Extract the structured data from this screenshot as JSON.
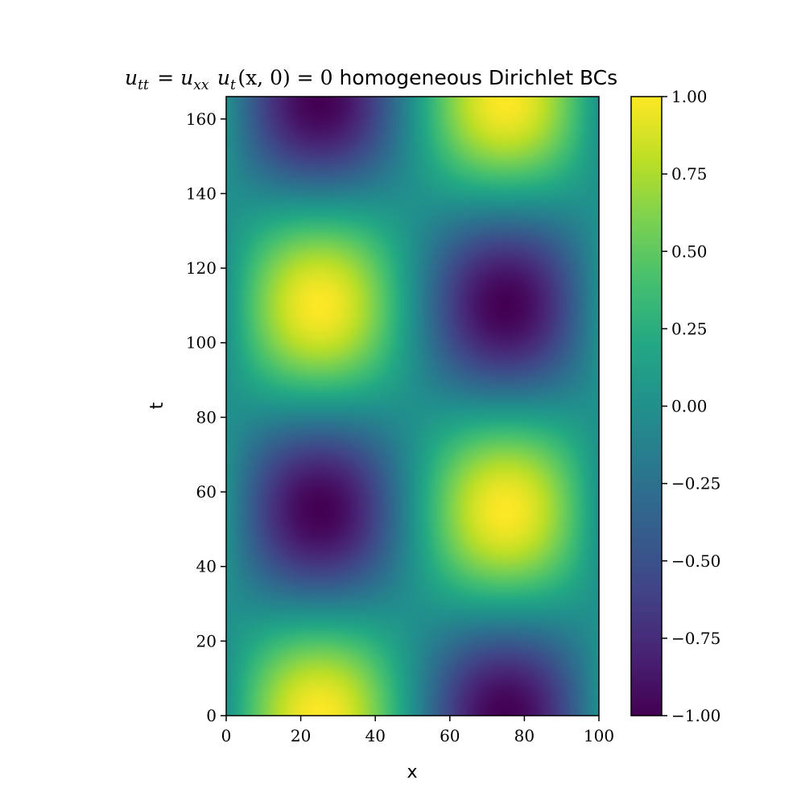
{
  "chart_data": {
    "type": "heatmap",
    "title": {
      "math_parts": [
        {
          "base": "u",
          "sub": "tt"
        },
        {
          "text": " = "
        },
        {
          "base": "u",
          "sub": "xx"
        },
        {
          "text": " "
        },
        {
          "base": "u",
          "sub": "t"
        },
        {
          "text": "(x, 0) = 0"
        }
      ],
      "text": "homogeneous Dirichlet BCs"
    },
    "xlabel": "x",
    "ylabel": "t",
    "xlim": [
      0,
      100
    ],
    "ylim": [
      0,
      166
    ],
    "x_ticks": [
      0,
      20,
      40,
      60,
      80,
      100
    ],
    "y_ticks": [
      0,
      20,
      40,
      60,
      80,
      100,
      120,
      140,
      160
    ],
    "colorbar": {
      "min": -1.0,
      "max": 1.0,
      "ticks": [
        1.0,
        0.75,
        0.5,
        0.25,
        0.0,
        -0.25,
        -0.5,
        -0.75,
        -1.0
      ],
      "tick_labels": [
        "1.00",
        "0.75",
        "0.50",
        "0.25",
        "0.00",
        "−0.25",
        "−0.50",
        "−0.75",
        "−1.00"
      ],
      "colormap": "viridis"
    },
    "field": {
      "formula": "u(x,t) = sin(2πx/100) · cos(2πt/110)",
      "spatial_period": 100,
      "temporal_period": 110
    },
    "grid": false
  }
}
